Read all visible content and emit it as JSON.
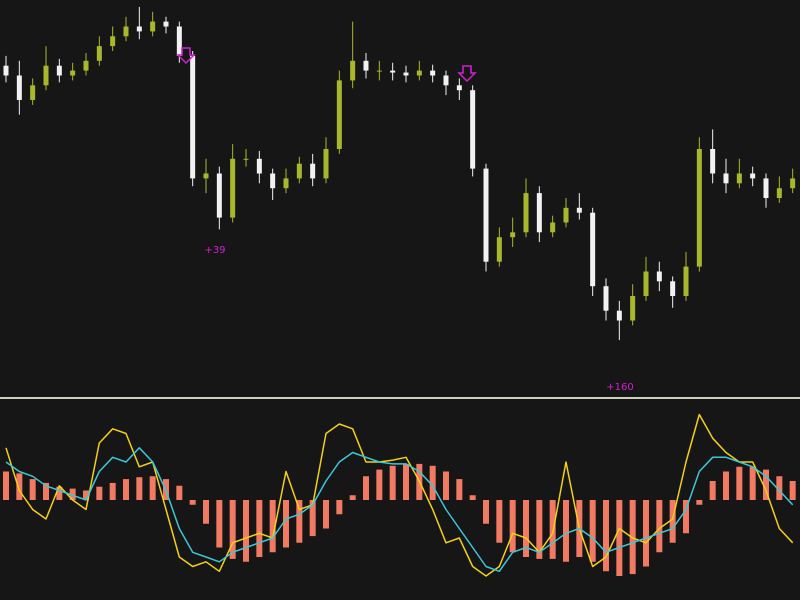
{
  "chart_data": [
    {
      "type": "candlestick",
      "up_color": "#a8b82a",
      "down_color": "#f2f2f2",
      "ylim": [
        0,
        400
      ],
      "annotations": [
        "+39",
        "+160"
      ],
      "annotation_color": "#d020d0",
      "open": [
        335,
        325,
        300,
        315,
        335,
        325,
        330,
        340,
        355,
        365,
        375,
        370,
        380,
        375,
        345,
        220,
        225,
        180,
        240,
        240,
        225,
        210,
        220,
        235,
        220,
        250,
        320,
        340,
        330,
        330,
        328,
        325,
        330,
        325,
        315,
        310,
        230,
        135,
        160,
        165,
        205,
        165,
        175,
        190,
        185,
        110,
        85,
        75,
        100,
        125,
        115,
        100,
        130,
        250,
        225,
        215,
        225,
        220,
        200,
        210
      ],
      "high": [
        345,
        340,
        322,
        355,
        342,
        338,
        348,
        365,
        375,
        385,
        395,
        390,
        385,
        380,
        350,
        240,
        232,
        255,
        250,
        248,
        230,
        230,
        242,
        245,
        262,
        330,
        380,
        348,
        340,
        338,
        335,
        340,
        336,
        330,
        322,
        315,
        235,
        170,
        180,
        220,
        212,
        182,
        200,
        205,
        190,
        118,
        95,
        112,
        140,
        135,
        120,
        145,
        262,
        270,
        240,
        240,
        232,
        225,
        222,
        230
      ],
      "low": [
        318,
        285,
        295,
        310,
        318,
        320,
        325,
        335,
        350,
        360,
        362,
        365,
        368,
        338,
        212,
        205,
        168,
        175,
        232,
        215,
        198,
        205,
        215,
        212,
        215,
        245,
        312,
        322,
        320,
        320,
        318,
        320,
        318,
        305,
        300,
        222,
        125,
        130,
        150,
        160,
        155,
        160,
        170,
        178,
        100,
        75,
        55,
        70,
        95,
        105,
        88,
        95,
        125,
        215,
        205,
        210,
        212,
        190,
        195,
        205
      ],
      "close": [
        325,
        300,
        315,
        335,
        325,
        330,
        340,
        355,
        365,
        375,
        370,
        380,
        375,
        345,
        220,
        225,
        180,
        240,
        240,
        225,
        210,
        220,
        235,
        220,
        250,
        320,
        340,
        330,
        330,
        328,
        325,
        330,
        325,
        315,
        310,
        230,
        135,
        160,
        165,
        205,
        165,
        175,
        190,
        185,
        110,
        85,
        75,
        100,
        125,
        115,
        100,
        130,
        250,
        225,
        215,
        225,
        220,
        200,
        210,
        220
      ]
    },
    {
      "type": "histogram-lines",
      "ylim": [
        -100,
        100
      ],
      "bar_color": "#f27a62",
      "values": [
        30,
        28,
        22,
        18,
        14,
        12,
        10,
        14,
        18,
        22,
        24,
        25,
        22,
        15,
        -5,
        -25,
        -50,
        -62,
        -65,
        -60,
        -55,
        -50,
        -45,
        -38,
        -30,
        -15,
        5,
        25,
        32,
        36,
        38,
        38,
        36,
        30,
        22,
        5,
        -25,
        -45,
        -55,
        -60,
        -62,
        -62,
        -65,
        -60,
        -65,
        -75,
        -80,
        -78,
        -70,
        -55,
        -45,
        -35,
        -5,
        20,
        30,
        35,
        35,
        32,
        25,
        20
      ],
      "series": [
        {
          "color": "#f2cf1d",
          "values": [
            55,
            10,
            -10,
            -20,
            15,
            0,
            -10,
            60,
            75,
            70,
            35,
            40,
            -10,
            -60,
            -70,
            -65,
            -75,
            -45,
            -40,
            -35,
            -40,
            30,
            -10,
            -5,
            70,
            80,
            75,
            40,
            40,
            42,
            45,
            20,
            -10,
            -45,
            -40,
            -70,
            -80,
            -70,
            -35,
            -40,
            -55,
            -35,
            40,
            -30,
            -70,
            -60,
            -30,
            -40,
            -45,
            -30,
            -20,
            40,
            90,
            65,
            50,
            40,
            40,
            10,
            -30,
            -45
          ]
        },
        {
          "color": "#3ec6d6",
          "values": [
            40,
            30,
            25,
            15,
            10,
            5,
            0,
            30,
            45,
            40,
            55,
            40,
            10,
            -30,
            -55,
            -60,
            -65,
            -55,
            -50,
            -45,
            -40,
            -20,
            -15,
            -5,
            20,
            40,
            50,
            45,
            40,
            38,
            38,
            30,
            15,
            -10,
            -30,
            -50,
            -70,
            -75,
            -55,
            -50,
            -55,
            -45,
            -35,
            -30,
            -40,
            -55,
            -50,
            -45,
            -40,
            -35,
            -30,
            -10,
            30,
            45,
            45,
            40,
            35,
            25,
            10,
            -5
          ]
        }
      ]
    }
  ]
}
